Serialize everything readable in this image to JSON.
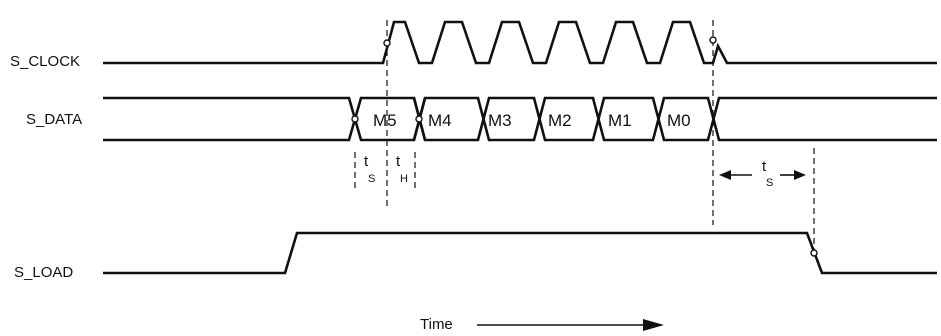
{
  "signals": {
    "clock": "S_CLOCK",
    "data": "S_DATA",
    "load": "S_LOAD"
  },
  "bits": [
    "M5",
    "M4",
    "M3",
    "M2",
    "M1",
    "M0"
  ],
  "timing": {
    "setup_t": "t",
    "setup_sub": "S",
    "hold_t": "t",
    "hold_sub": "H",
    "setup2_t": "t",
    "setup2_sub": "S"
  },
  "axis": {
    "time_label": "Time"
  }
}
